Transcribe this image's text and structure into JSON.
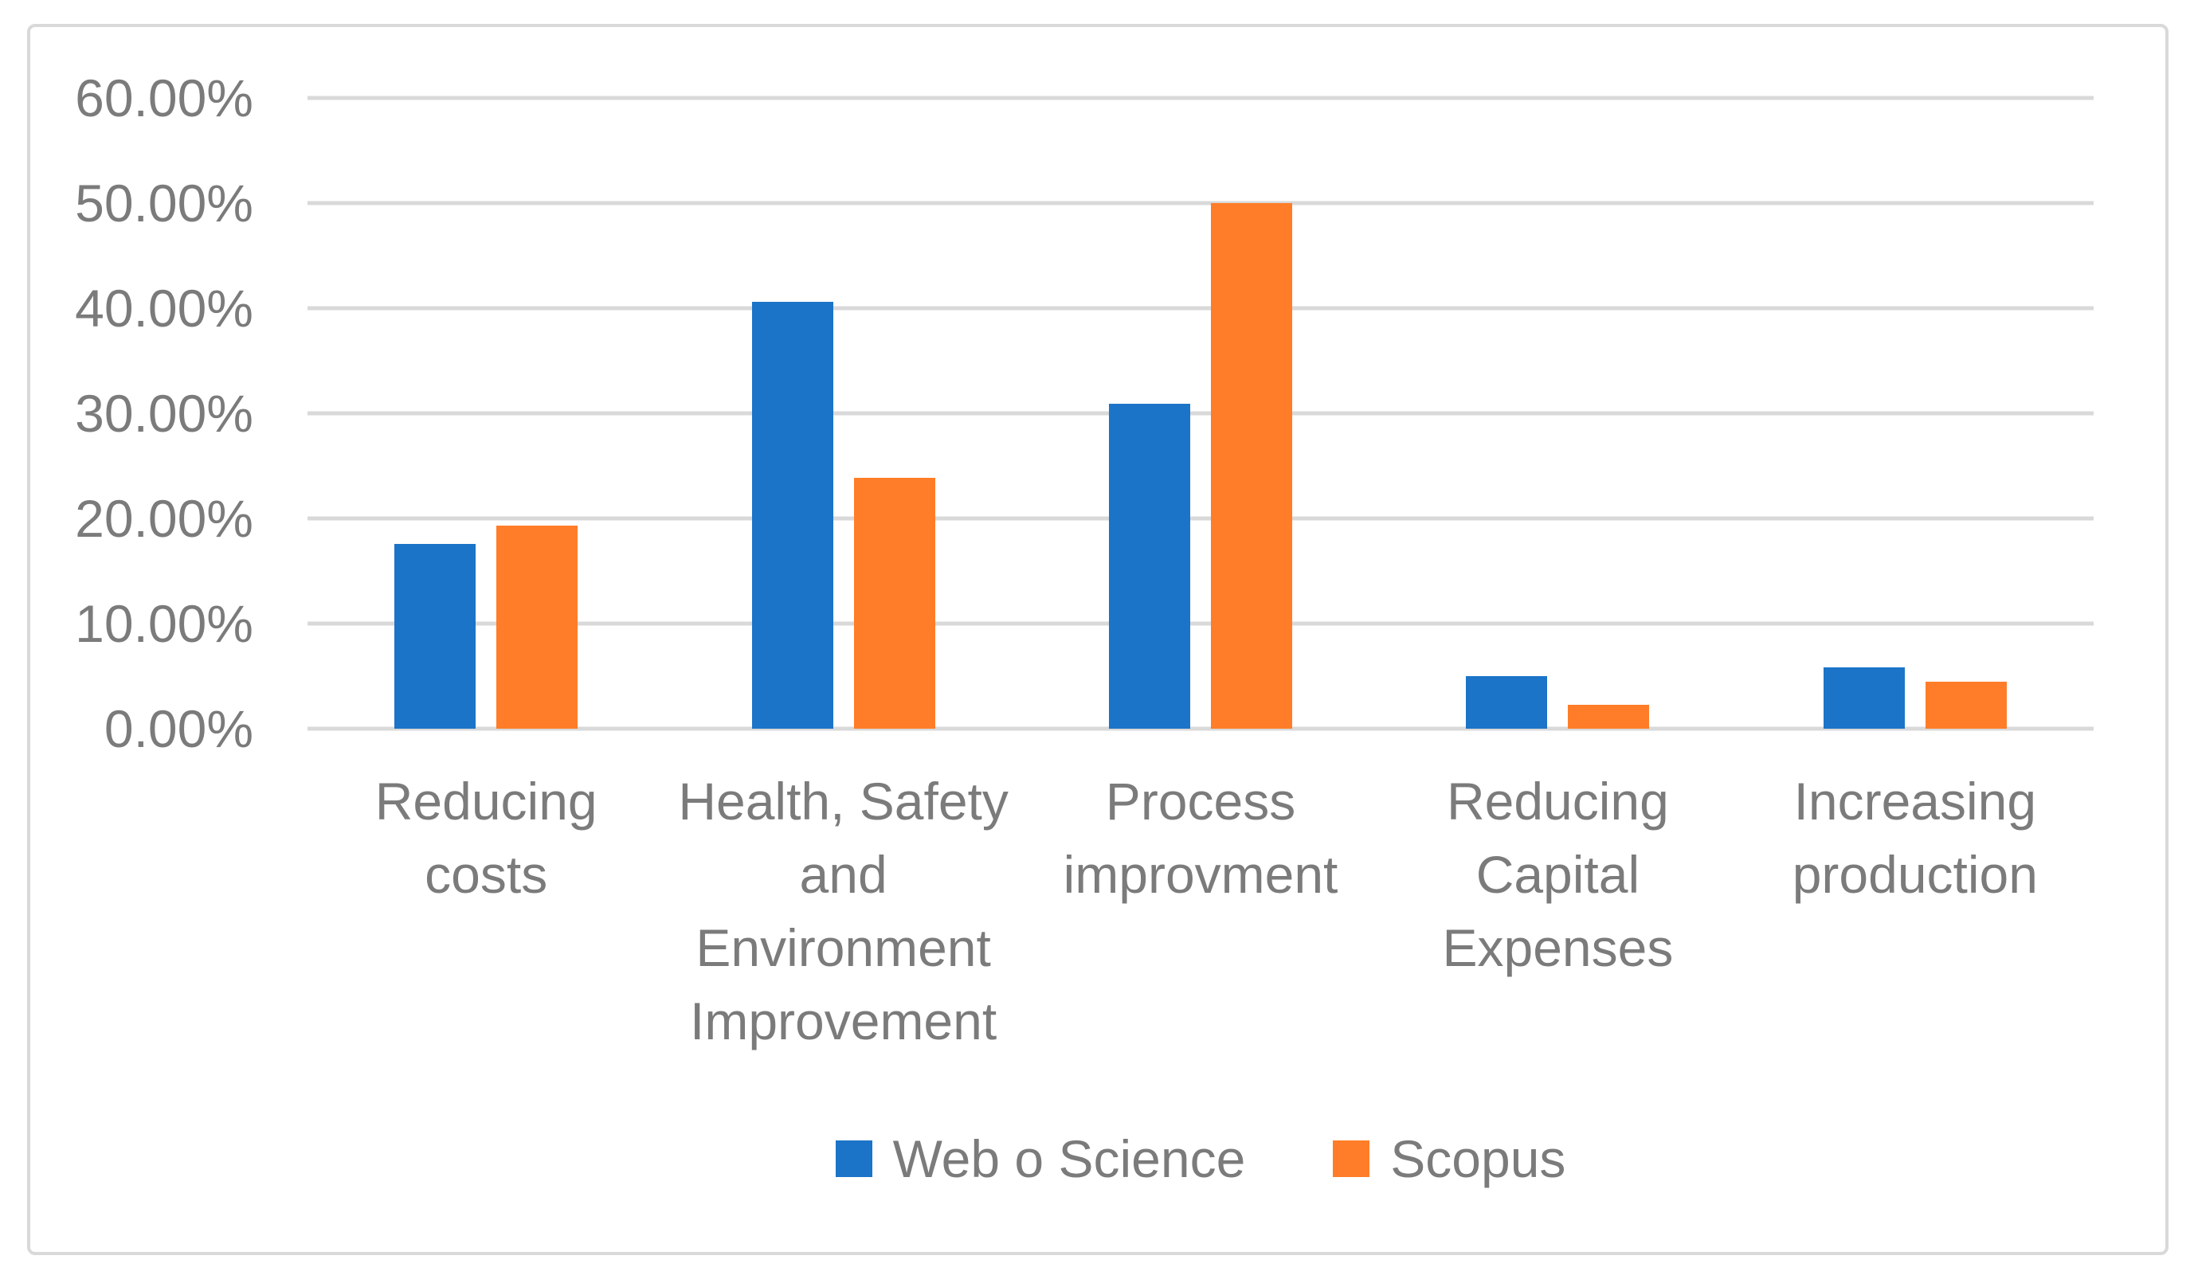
{
  "figure": {
    "background_color": "#ffffff",
    "frame_border_color": "#d9d9d9"
  },
  "chart_data": {
    "type": "bar",
    "title": "",
    "xlabel": "",
    "ylabel": "",
    "unit": "percent",
    "grid": true,
    "legend_position": "bottom",
    "axis_text_color": "#7b7b7b",
    "gridline_color": "#d9d9d9",
    "ylim": [
      0,
      60
    ],
    "ytick_values": [
      0,
      10,
      20,
      30,
      40,
      50,
      60
    ],
    "ytick_labels": [
      "0.00%",
      "10.00%",
      "20.00%",
      "30.00%",
      "40.00%",
      "50.00%",
      "60.00%"
    ],
    "categories": [
      "Reducing costs",
      "Health, Safety and Environment Improvement",
      "Process improvment",
      "Reducing Capital Expenses",
      "Increasing production"
    ],
    "category_display_lines": [
      [
        "Reducing",
        "costs"
      ],
      [
        "Health, Safety",
        "and",
        "Environment",
        "Improvement"
      ],
      [
        "Process",
        "improvment"
      ],
      [
        "Reducing",
        "Capital",
        "Expenses"
      ],
      [
        "Increasing",
        "production"
      ]
    ],
    "series": [
      {
        "name": "Web o Science",
        "color": "#1b74c8",
        "values": [
          17.6,
          40.6,
          30.9,
          5.0,
          5.8
        ]
      },
      {
        "name": "Scopus",
        "color": "#ff7d28",
        "values": [
          19.3,
          23.9,
          50.0,
          2.3,
          4.5
        ]
      }
    ]
  }
}
